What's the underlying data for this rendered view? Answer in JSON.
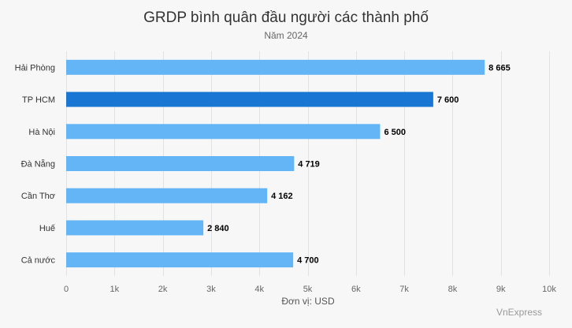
{
  "chart_data": {
    "type": "bar",
    "orientation": "horizontal",
    "title": "GRDP bình quân đầu người các thành phố",
    "subtitle": "Năm 2024",
    "categories": [
      "Hải Phòng",
      "TP HCM",
      "Hà Nội",
      "Đà Nẵng",
      "Cần Thơ",
      "Huế",
      "Cả nước"
    ],
    "values": [
      8665,
      7600,
      6500,
      4719,
      4162,
      2840,
      4700
    ],
    "data_labels": [
      "8 665",
      "7 600",
      "6 500",
      "4 719",
      "4 162",
      "2 840",
      "4 700"
    ],
    "highlight_index": 1,
    "xlabel": "Đơn vị: USD",
    "ylabel": "",
    "xlim": [
      0,
      10000
    ],
    "ticks": [
      0,
      1000,
      2000,
      3000,
      4000,
      5000,
      6000,
      7000,
      8000,
      9000,
      10000
    ],
    "tick_labels": [
      "0",
      "1k",
      "2k",
      "3k",
      "4k",
      "5k",
      "6k",
      "7k",
      "8k",
      "9k",
      "10k"
    ],
    "grid": true,
    "colors": {
      "bar": "#64b5f6",
      "highlight": "#1976d2",
      "background": "#f7f7f7"
    }
  },
  "credit": "VnExpress"
}
